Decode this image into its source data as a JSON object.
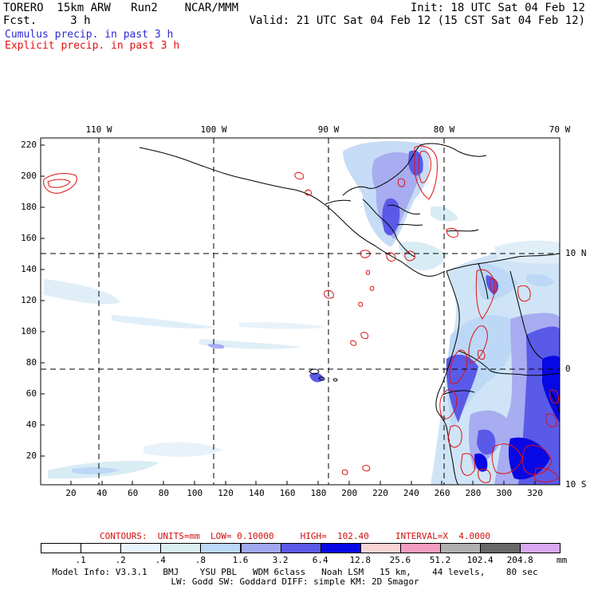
{
  "header": {
    "model_name": "TORERO  15km ARW   Run2    NCAR/MMM",
    "forecast": "Fcst.     3 h",
    "init": "Init: 18 UTC Sat 04 Feb 12",
    "valid": "Valid: 21 UTC Sat 04 Feb 12 (15 CST Sat 04 Feb 12)",
    "field_cumulus": "Cumulus precip. in past 3 h",
    "field_explicit": "Explicit precip. in past 3 h"
  },
  "axes": {
    "bottom_ticks": [
      "20",
      "40",
      "60",
      "80",
      "100",
      "120",
      "140",
      "160",
      "180",
      "200",
      "220",
      "240",
      "260",
      "280",
      "300",
      "320"
    ],
    "left_ticks": [
      "20",
      "40",
      "60",
      "80",
      "100",
      "120",
      "140",
      "160",
      "180",
      "200",
      "220"
    ],
    "top_lon": [
      "110 W",
      "100 W",
      "90 W",
      "80 W",
      "70 W"
    ],
    "right_lat": [
      "10 N",
      "0",
      "10 S"
    ]
  },
  "contours": {
    "text": "CONTOURS:  UNITS=mm  LOW= 0.10000     HIGH=  102.40     INTERVAL=X  4.0000"
  },
  "legend": {
    "labels": [
      ".1",
      ".2",
      ".4",
      ".8",
      "1.6",
      "3.2",
      "6.4",
      "12.8",
      "25.6",
      "51.2",
      "102.4",
      "204.8"
    ],
    "units": "mm",
    "colors": [
      "#ffffff",
      "#ffffff",
      "#e8f4ff",
      "#d8f0f0",
      "#bcd8f6",
      "#a0a8f2",
      "#5a5ae8",
      "#0808e4",
      "#f8d4d4",
      "#f49cc0",
      "#b0b0b0",
      "#686868",
      "#d8a8f4"
    ]
  },
  "model_info": {
    "line1": "Model Info: V3.3.1   BMJ    YSU PBL   WDM 6class   Noah LSM   15 km,    44 levels,    80 sec",
    "line2": "LW: Godd SW: Goddard DIFF: simple KM: 2D Smagor"
  },
  "colors": {
    "cumulus_text": "#2a2ad2",
    "explicit_text": "#e01010",
    "contour_red": "#e01010"
  }
}
